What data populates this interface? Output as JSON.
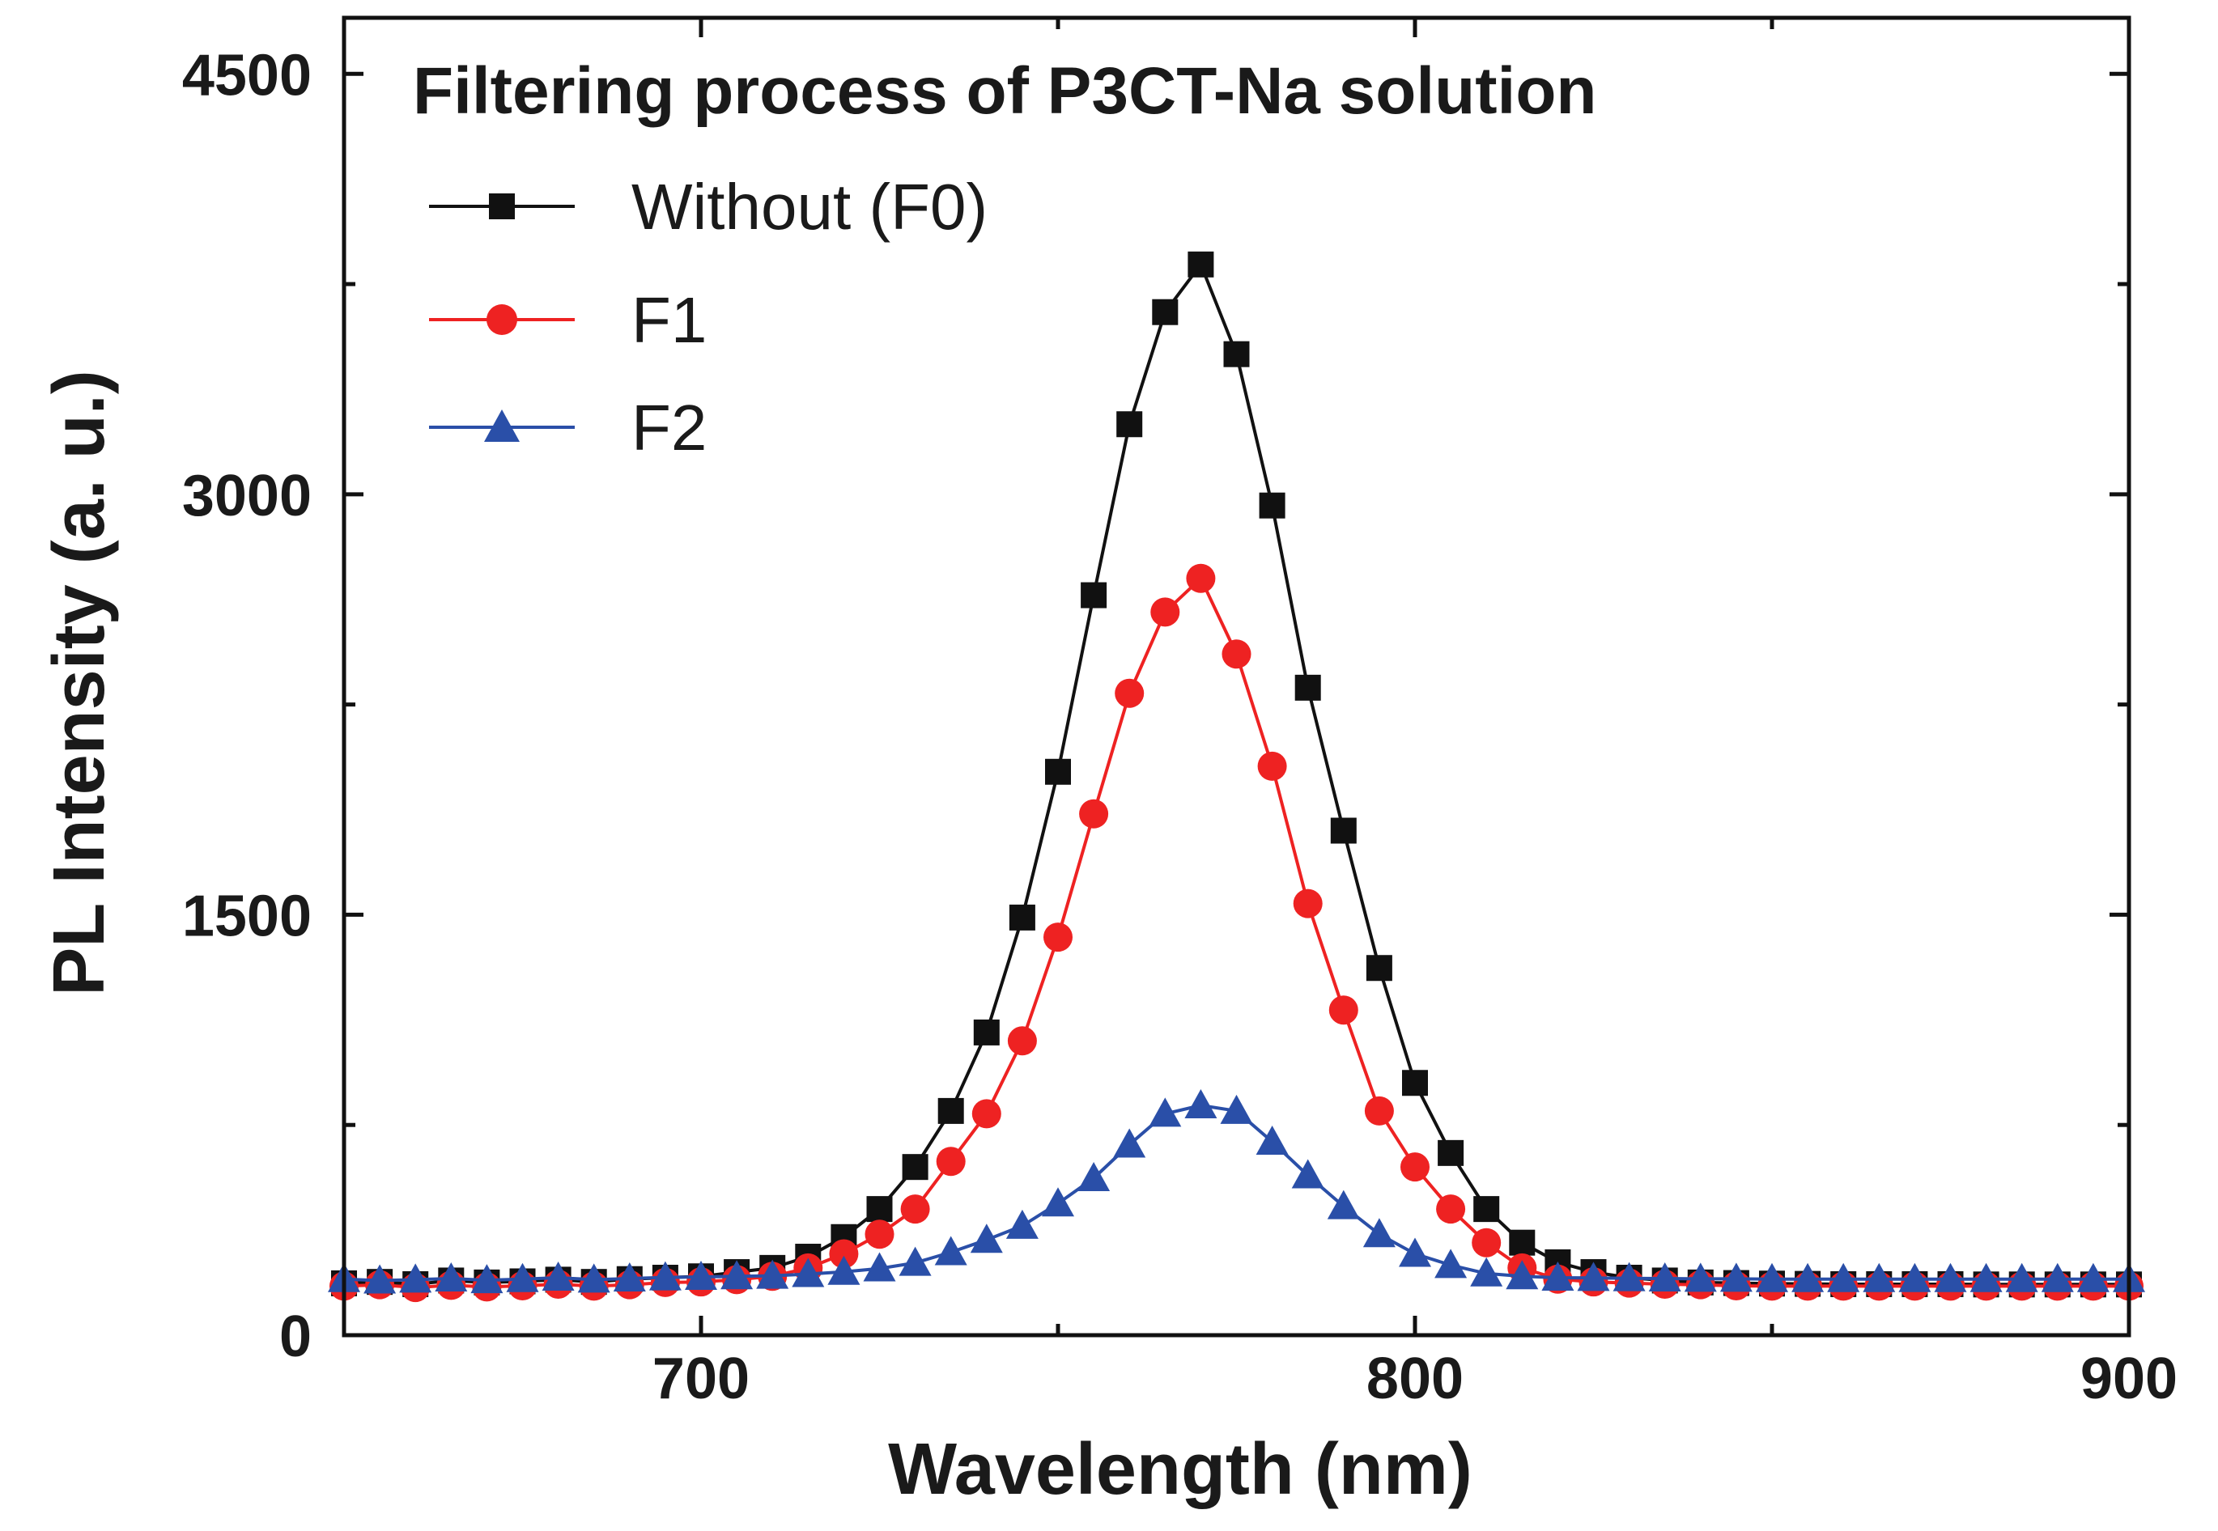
{
  "chart_data": {
    "type": "line",
    "title": "Filtering process of P3CT-Na solution",
    "xlabel": "Wavelength (nm)",
    "ylabel": "PL Intensity (a. u.)",
    "xlim": [
      650,
      900
    ],
    "ylim": [
      0,
      4700
    ],
    "x_ticks": [
      700,
      800,
      900
    ],
    "y_ticks": [
      0,
      1500,
      3000,
      4500
    ],
    "grid": false,
    "legend_position": "top-left",
    "x": [
      650,
      655,
      660,
      665,
      670,
      675,
      680,
      685,
      690,
      695,
      700,
      705,
      710,
      715,
      720,
      725,
      730,
      735,
      740,
      745,
      750,
      755,
      760,
      765,
      770,
      775,
      780,
      785,
      790,
      795,
      800,
      805,
      810,
      815,
      820,
      825,
      830,
      835,
      840,
      845,
      850,
      855,
      860,
      865,
      870,
      875,
      880,
      885,
      890,
      895,
      900
    ],
    "series": [
      {
        "name": "Without (F0)",
        "color": "#111111",
        "marker": "square",
        "values": [
          185,
          190,
          182,
          195,
          188,
          192,
          198,
          190,
          200,
          205,
          210,
          225,
          240,
          280,
          350,
          450,
          600,
          800,
          1080,
          1490,
          2010,
          2640,
          3250,
          3650,
          3820,
          3500,
          2960,
          2310,
          1800,
          1310,
          900,
          650,
          450,
          330,
          260,
          225,
          205,
          195,
          188,
          186,
          184,
          183,
          182,
          182,
          182,
          182,
          181,
          181,
          181,
          181,
          181
        ]
      },
      {
        "name": "F1",
        "color": "#ee2222",
        "marker": "circle",
        "values": [
          175,
          180,
          170,
          178,
          172,
          176,
          182,
          175,
          180,
          188,
          190,
          198,
          210,
          240,
          290,
          360,
          450,
          620,
          790,
          1050,
          1420,
          1860,
          2290,
          2580,
          2700,
          2430,
          2030,
          1540,
          1160,
          800,
          600,
          450,
          330,
          240,
          200,
          190,
          186,
          182,
          180,
          176,
          175,
          175,
          175,
          175,
          175,
          175,
          175,
          175,
          175,
          175,
          175
        ]
      },
      {
        "name": "F2",
        "color": "#2a4fa8",
        "marker": "triangle",
        "values": [
          200,
          195,
          198,
          202,
          196,
          200,
          205,
          198,
          202,
          206,
          208,
          210,
          212,
          218,
          226,
          238,
          258,
          296,
          340,
          390,
          470,
          560,
          680,
          790,
          820,
          800,
          690,
          570,
          460,
          360,
          290,
          250,
          220,
          210,
          205,
          204,
          203,
          202,
          201,
          201,
          200,
          200,
          200,
          200,
          200,
          200,
          200,
          200,
          200,
          200,
          200
        ]
      }
    ]
  }
}
